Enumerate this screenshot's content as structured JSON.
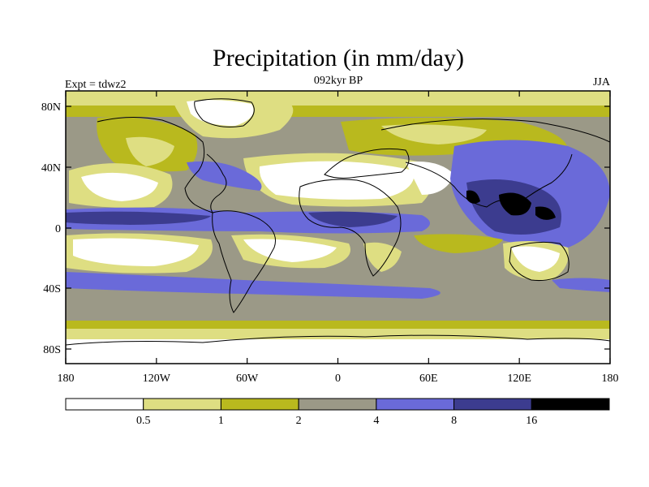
{
  "header": {
    "title": "Precipitation (in mm/day)",
    "left_label": "Expt = tdwz2",
    "center_label": "092kyr BP",
    "right_label": "JJA"
  },
  "map": {
    "lat_ticks": [
      "80N",
      "40N",
      "0",
      "40S",
      "80S"
    ],
    "lon_ticks": [
      "180",
      "120W",
      "60W",
      "0",
      "60E",
      "120E",
      "180"
    ]
  },
  "colorbar": {
    "labels": [
      "0.5",
      "1",
      "2",
      "4",
      "8",
      "16"
    ],
    "colors": [
      "#ffffff",
      "#dede82",
      "#b9b91e",
      "#9b9987",
      "#6a6ad9",
      "#3c3c8f",
      "#000000"
    ]
  },
  "colors": {
    "lt_0_5": "#ffffff",
    "0_5_to_1": "#dede82",
    "1_to_2": "#b9b91e",
    "2_to_4": "#9b9987",
    "4_to_8": "#6a6ad9",
    "8_to_16": "#3c3c8f",
    "gt_16": "#000000"
  }
}
